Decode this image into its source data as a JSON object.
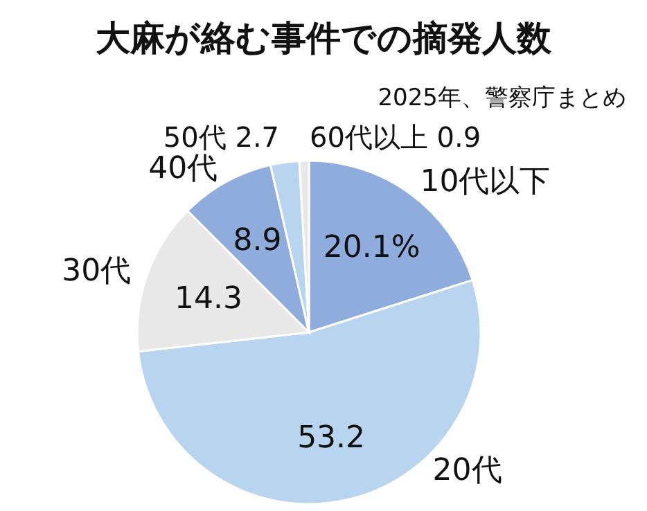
{
  "chart_data": {
    "type": "pie",
    "title": "大麻が絡む事件での摘発人数",
    "subtitle": "2025年、警察庁まとめ",
    "categories": [
      "10代以下",
      "20代",
      "30代",
      "40代",
      "50代",
      "60代以上"
    ],
    "values": [
      20.1,
      53.2,
      14.3,
      8.9,
      2.7,
      0.9
    ],
    "value_labels": [
      "20.1%",
      "53.2",
      "14.3",
      "8.9",
      "2.7",
      "0.9"
    ],
    "colors": [
      "#8eaddc",
      "#b8d4ee",
      "#e8e8e8",
      "#8eaddc",
      "#b8d4ee",
      "#e8e8e8"
    ]
  }
}
